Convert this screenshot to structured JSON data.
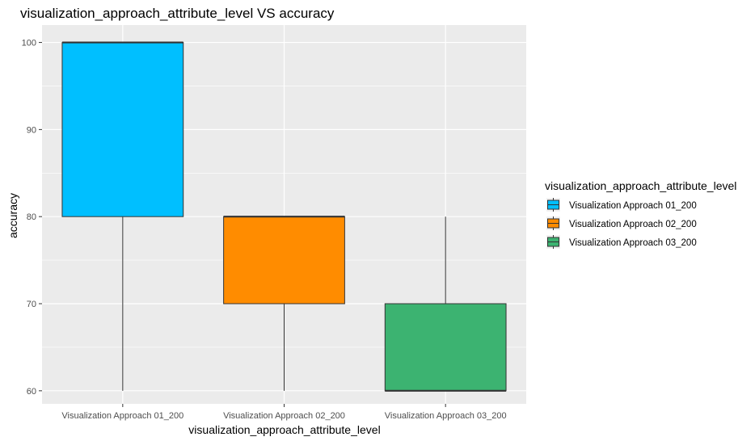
{
  "chart_data": {
    "type": "boxplot",
    "title": "visualization_approach_attribute_level VS accuracy",
    "xlabel": "visualization_approach_attribute_level",
    "ylabel": "accuracy",
    "ylim": [
      58.5,
      102
    ],
    "yticks": [
      60,
      70,
      80,
      90,
      100
    ],
    "grid": true,
    "legend_title": "visualization_approach_attribute_level",
    "legend_position": "right",
    "categories": [
      "Visualization Approach 01_200",
      "Visualization Approach 02_200",
      "Visualization Approach 03_200"
    ],
    "boxes": [
      {
        "category": "Visualization Approach 01_200",
        "min": 60,
        "q1": 80,
        "median": 100,
        "q3": 100,
        "max": 100,
        "color": "#00BFFF"
      },
      {
        "category": "Visualization Approach 02_200",
        "min": 60,
        "q1": 70,
        "median": 80,
        "q3": 80,
        "max": 80,
        "color": "#FF8C00"
      },
      {
        "category": "Visualization Approach 03_200",
        "min": 60,
        "q1": 60,
        "median": 60,
        "q3": 70,
        "max": 80,
        "color": "#3CB371"
      }
    ]
  }
}
